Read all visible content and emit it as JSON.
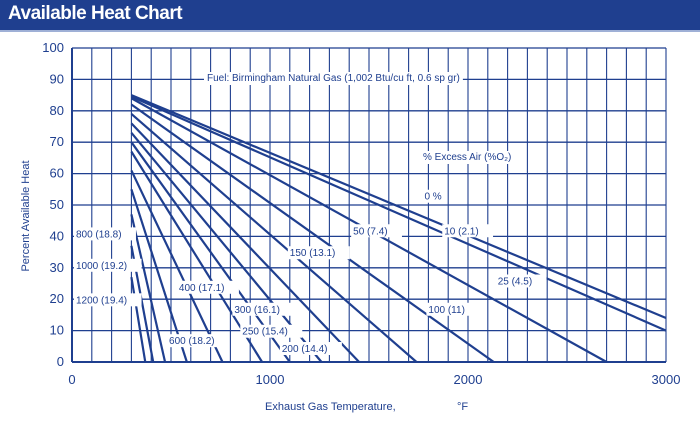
{
  "header": {
    "title": "Available Heat Chart"
  },
  "colors": {
    "primary": "#1f3f8f",
    "header_bg": "#1f3f8f",
    "grid": "#1f3f8f",
    "background": "#ffffff"
  },
  "chart_data": {
    "type": "line",
    "title": "",
    "subtitle": "Fuel: Birmingham Natural Gas (1,002 Btu/cu ft, 0.6 sp gr)",
    "legend_title": "% Excess Air (%O₂)",
    "xlabel": "Exhaust Gas Temperature,",
    "xunit": "°F",
    "ylabel": "Percent Available Heat",
    "xlim": [
      0,
      3000
    ],
    "ylim": [
      0,
      100
    ],
    "xticks": [
      0,
      1000,
      2000,
      3000
    ],
    "yticks": [
      0,
      10,
      20,
      30,
      40,
      50,
      60,
      70,
      80,
      90,
      100
    ],
    "grid": true,
    "series": [
      {
        "name": "0 %",
        "x": [
          300,
          3000
        ],
        "y": [
          85.0,
          14.0
        ]
      },
      {
        "name": "10 (2.1)",
        "x": [
          300,
          3000
        ],
        "y": [
          84.5,
          10.0
        ]
      },
      {
        "name": "25 (4.5)",
        "x": [
          300,
          2700
        ],
        "y": [
          84.0,
          0.0
        ]
      },
      {
        "name": "50 (7.4)",
        "x": [
          300,
          2130
        ],
        "y": [
          82.0,
          0.0
        ]
      },
      {
        "name": "100 (11)",
        "x": [
          300,
          1740
        ],
        "y": [
          79.0,
          0.0
        ]
      },
      {
        "name": "150 (13.1)",
        "x": [
          300,
          1450
        ],
        "y": [
          76.0,
          0.0
        ]
      },
      {
        "name": "200 (14.4)",
        "x": [
          300,
          1260
        ],
        "y": [
          73.0,
          0.0
        ]
      },
      {
        "name": "250 (15.4)",
        "x": [
          300,
          1100
        ],
        "y": [
          70.0,
          0.0
        ]
      },
      {
        "name": "300 (16.1)",
        "x": [
          300,
          960
        ],
        "y": [
          67.0,
          0.0
        ]
      },
      {
        "name": "400 (17.1)",
        "x": [
          300,
          760
        ],
        "y": [
          61.0,
          0.0
        ]
      },
      {
        "name": "600 (18.2)",
        "x": [
          300,
          580
        ],
        "y": [
          55.0,
          0.0
        ]
      },
      {
        "name": "800 (18.8)",
        "x": [
          300,
          470
        ],
        "y": [
          47.0,
          0.0
        ]
      },
      {
        "name": "1000 (19.2)",
        "x": [
          300,
          410
        ],
        "y": [
          37.0,
          0.0
        ]
      },
      {
        "name": "1200 (19.4)",
        "x": [
          300,
          370
        ],
        "y": [
          27.0,
          0.0
        ]
      }
    ]
  }
}
